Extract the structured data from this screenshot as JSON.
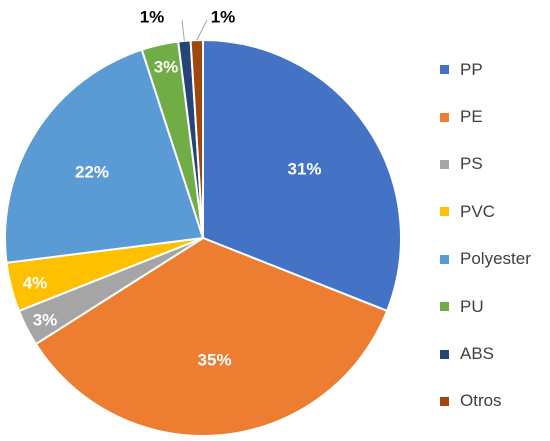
{
  "chart_data": {
    "type": "pie",
    "categories": [
      "PP",
      "PE",
      "PS",
      "PVC",
      "Polyester",
      "PU",
      "ABS",
      "Otros"
    ],
    "values": [
      31,
      35,
      3,
      4,
      22,
      3,
      1,
      1
    ],
    "labels": [
      "31%",
      "35%",
      "3%",
      "4%",
      "22%",
      "3%",
      "1%",
      "1%"
    ],
    "colors": [
      "#4472C4",
      "#ED7D31",
      "#A5A5A5",
      "#FFC000",
      "#5B9BD5",
      "#70AD47",
      "#264478",
      "#9E480E"
    ],
    "label_colors": [
      "#ffffff",
      "#ffffff",
      "#ffffff",
      "#ffffff",
      "#ffffff",
      "#ffffff",
      "#000000",
      "#000000"
    ],
    "start": "12 o'clock",
    "direction": "clockwise",
    "legend": "right"
  }
}
